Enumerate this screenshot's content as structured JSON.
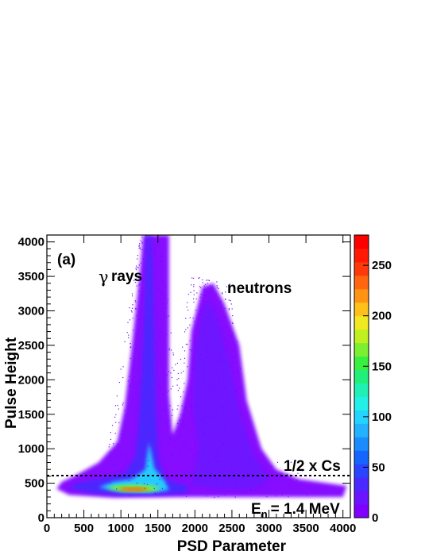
{
  "chart_data": {
    "type": "heatmap",
    "title": "",
    "xlabel": "PSD Parameter",
    "ylabel": "Pulse Height",
    "xlim": [
      0,
      4100
    ],
    "ylim": [
      0,
      4100
    ],
    "x_ticks": [
      0,
      500,
      1000,
      1500,
      2000,
      2500,
      3000,
      3500,
      4000
    ],
    "y_ticks": [
      0,
      500,
      1000,
      1500,
      2000,
      2500,
      3000,
      3500,
      4000
    ],
    "colorbar": {
      "range": [
        0,
        280
      ],
      "ticks": [
        0,
        50,
        100,
        150,
        200,
        250
      ],
      "colors": [
        "#8000ff",
        "#6a14ff",
        "#4a28ff",
        "#2a44ff",
        "#1466ff",
        "#1a8cff",
        "#22b2ff",
        "#22d4ff",
        "#22f0e8",
        "#20f0b4",
        "#20f07a",
        "#38f040",
        "#7cf030",
        "#c0f020",
        "#f0e820",
        "#ffc01a",
        "#ff9414",
        "#ff660e",
        "#ff3a08",
        "#ff1a04",
        "#ff0000"
      ]
    },
    "regions": [
      {
        "name": "gamma band",
        "x_center": 1400,
        "y_range": [
          300,
          4100
        ],
        "peak_x": 1100,
        "peak_y": 400
      },
      {
        "name": "neutron band",
        "x_center": 2200,
        "y_range": [
          300,
          3400
        ]
      }
    ],
    "threshold_line": {
      "y": 610,
      "style": "dotted"
    }
  },
  "labels": {
    "panel": "(a)",
    "gamma_symbol": "γ",
    "gamma_text": "rays",
    "neutrons": "neutrons",
    "threshold": "1/2 x Cs",
    "energy_main": "E",
    "energy_sub": "n",
    "energy_value": "= 1.4 MeV"
  }
}
